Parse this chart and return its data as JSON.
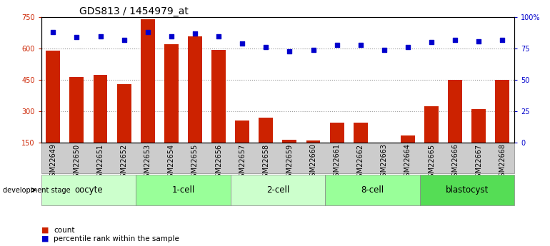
{
  "title": "GDS813 / 1454979_at",
  "samples": [
    "GSM22649",
    "GSM22650",
    "GSM22651",
    "GSM22652",
    "GSM22653",
    "GSM22654",
    "GSM22655",
    "GSM22656",
    "GSM22657",
    "GSM22658",
    "GSM22659",
    "GSM22660",
    "GSM22661",
    "GSM22662",
    "GSM22663",
    "GSM22664",
    "GSM22665",
    "GSM22666",
    "GSM22667",
    "GSM22668"
  ],
  "counts": [
    590,
    463,
    475,
    430,
    740,
    620,
    660,
    595,
    255,
    270,
    163,
    160,
    245,
    245,
    148,
    185,
    325,
    450,
    310,
    450
  ],
  "percentiles": [
    88,
    84,
    85,
    82,
    88,
    85,
    87,
    85,
    79,
    76,
    73,
    74,
    78,
    78,
    74,
    76,
    80,
    82,
    81,
    82
  ],
  "groups": [
    {
      "name": "oocyte",
      "start": 0,
      "end": 4,
      "color": "#ccffcc"
    },
    {
      "name": "1-cell",
      "start": 4,
      "end": 8,
      "color": "#99ff99"
    },
    {
      "name": "2-cell",
      "start": 8,
      "end": 12,
      "color": "#ccffcc"
    },
    {
      "name": "8-cell",
      "start": 12,
      "end": 16,
      "color": "#99ff99"
    },
    {
      "name": "blastocyst",
      "start": 16,
      "end": 20,
      "color": "#55dd55"
    }
  ],
  "bar_color": "#cc2200",
  "dot_color": "#0000cc",
  "left_ylim": [
    150,
    750
  ],
  "left_yticks": [
    150,
    300,
    450,
    600,
    750
  ],
  "right_ylim": [
    0,
    100
  ],
  "right_yticks": [
    0,
    25,
    50,
    75,
    100
  ],
  "right_yticklabels": [
    "0",
    "25",
    "50",
    "75",
    "100%"
  ],
  "bar_width": 0.6,
  "bg_color": "#ffffff",
  "grid_color": "#999999",
  "title_fontsize": 10,
  "tick_fontsize": 7,
  "group_fontsize": 8.5
}
